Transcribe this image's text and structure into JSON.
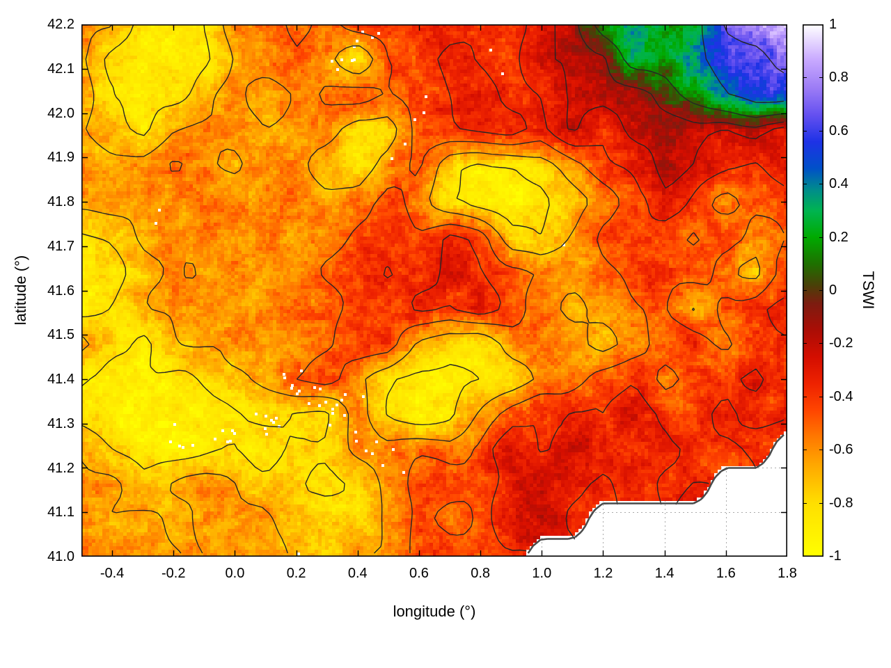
{
  "chart_data": {
    "type": "heatmap",
    "title": "",
    "xlabel": "longitude (°)",
    "ylabel": "latitude (°)",
    "colorbar_label": "TSWI",
    "x_range": [
      -0.5,
      1.8
    ],
    "y_range": [
      41.0,
      42.2
    ],
    "color_range": [
      -1,
      1
    ],
    "x_ticks": [
      -0.4,
      -0.2,
      0.0,
      0.2,
      0.4,
      0.6,
      0.8,
      1.0,
      1.2,
      1.4,
      1.6,
      1.8
    ],
    "x_tick_labels": [
      "-0.4",
      "-0.2",
      "0.0",
      "0.2",
      "0.4",
      "0.6",
      "0.8",
      "1.0",
      "1.2",
      "1.4",
      "1.6",
      "1.8"
    ],
    "y_ticks": [
      41.0,
      41.1,
      41.2,
      41.3,
      41.4,
      41.5,
      41.6,
      41.7,
      41.8,
      41.9,
      42.0,
      42.1,
      42.2
    ],
    "y_tick_labels": [
      "41.0",
      "41.1",
      "41.2",
      "41.3",
      "41.4",
      "41.5",
      "41.6",
      "41.7",
      "41.8",
      "41.9",
      "42.0",
      "42.1",
      "42.2"
    ],
    "colorbar_ticks": [
      1,
      0.8,
      0.6,
      0.4,
      0.2,
      0,
      -0.2,
      -0.4,
      -0.6,
      -0.8,
      -1
    ],
    "colorbar_tick_labels": [
      "1",
      "0.8",
      "0.6",
      "0.4",
      "0.2",
      "0",
      "-0.2",
      "-0.4",
      "-0.6",
      "-0.8",
      "-1"
    ],
    "grid_lon_start": -0.5,
    "grid_lon_step": 0.1,
    "grid_lat_start": 42.2,
    "grid_lat_step": -0.08,
    "values": [
      [
        -0.6,
        -0.6,
        -0.9,
        -0.9,
        -0.85,
        -0.6,
        -0.6,
        -0.45,
        -0.6,
        -0.45,
        -0.45,
        -0.4,
        -0.4,
        -0.35,
        -0.4,
        -0.25,
        -0.2,
        0.2,
        0.3,
        0.25,
        0.3,
        0.7,
        0.8,
        0.9
      ],
      [
        -0.65,
        -0.85,
        -0.9,
        -0.9,
        -0.85,
        -0.65,
        -0.6,
        -0.5,
        -0.6,
        -0.8,
        -0.45,
        -0.4,
        -0.3,
        -0.35,
        -0.4,
        -0.25,
        -0.2,
        -0.15,
        0.25,
        0.2,
        0.35,
        0.55,
        0.6,
        0.8
      ],
      [
        -0.6,
        -0.85,
        -0.9,
        -0.85,
        -0.7,
        -0.6,
        -0.7,
        -0.6,
        -0.5,
        -0.45,
        -0.55,
        -0.45,
        -0.35,
        -0.25,
        -0.4,
        -0.35,
        -0.2,
        -0.2,
        -0.15,
        -0.05,
        0.2,
        0.4,
        0.55,
        0.5
      ],
      [
        -0.65,
        -0.7,
        -0.85,
        -0.65,
        -0.6,
        -0.6,
        -0.65,
        -0.6,
        -0.55,
        -0.8,
        -0.75,
        -0.45,
        -0.4,
        -0.35,
        -0.3,
        -0.4,
        -0.25,
        -0.35,
        -0.2,
        -0.15,
        -0.2,
        -0.3,
        -0.2,
        -0.3
      ],
      [
        -0.6,
        -0.65,
        -0.6,
        -0.5,
        -0.6,
        -0.65,
        -0.6,
        -0.55,
        -0.75,
        -0.8,
        -0.6,
        -0.45,
        -0.75,
        -0.85,
        -0.85,
        -0.8,
        -0.6,
        -0.45,
        -0.3,
        -0.2,
        -0.25,
        -0.35,
        -0.4,
        -0.3
      ],
      [
        -0.6,
        -0.6,
        -0.65,
        -0.6,
        -0.5,
        -0.6,
        -0.6,
        -0.55,
        -0.6,
        -0.55,
        -0.45,
        -0.55,
        -0.8,
        -0.9,
        -0.9,
        -0.85,
        -0.75,
        -0.55,
        -0.45,
        -0.3,
        -0.4,
        -0.55,
        -0.45,
        -0.4
      ],
      [
        -0.85,
        -0.8,
        -0.65,
        -0.6,
        -0.6,
        -0.65,
        -0.6,
        -0.6,
        -0.55,
        -0.45,
        -0.42,
        -0.45,
        -0.3,
        -0.4,
        -0.75,
        -0.8,
        -0.6,
        -0.45,
        -0.4,
        -0.45,
        -0.55,
        -0.45,
        -0.6,
        -0.45
      ],
      [
        -0.9,
        -0.85,
        -0.7,
        -0.6,
        -0.65,
        -0.6,
        -0.65,
        -0.6,
        -0.5,
        -0.45,
        -0.35,
        -0.4,
        -0.3,
        -0.35,
        -0.45,
        -0.55,
        -0.6,
        -0.55,
        -0.45,
        -0.4,
        -0.45,
        -0.6,
        -0.7,
        -0.45
      ],
      [
        -0.85,
        -0.8,
        -0.7,
        -0.65,
        -0.6,
        -0.65,
        -0.6,
        -0.55,
        -0.5,
        -0.45,
        -0.4,
        -0.35,
        -0.4,
        -0.3,
        -0.45,
        -0.55,
        -0.7,
        -0.6,
        -0.55,
        -0.45,
        -0.7,
        -0.45,
        -0.4,
        -0.35
      ],
      [
        -0.65,
        -0.8,
        -0.85,
        -0.7,
        -0.65,
        -0.6,
        -0.65,
        -0.6,
        -0.5,
        -0.42,
        -0.4,
        -0.7,
        -0.8,
        -0.85,
        -0.6,
        -0.55,
        -0.6,
        -0.7,
        -0.6,
        -0.45,
        -0.4,
        -0.55,
        -0.45,
        -0.4
      ],
      [
        -0.8,
        -0.85,
        -0.9,
        -0.85,
        -0.8,
        -0.75,
        -0.65,
        -0.5,
        -0.45,
        -0.6,
        -0.8,
        -0.9,
        -0.9,
        -0.85,
        -0.8,
        -0.6,
        -0.55,
        -0.45,
        -0.4,
        -0.55,
        -0.45,
        -0.4,
        -0.3,
        -0.45
      ],
      [
        -0.85,
        -0.9,
        -0.95,
        -0.9,
        -0.9,
        -0.85,
        -0.8,
        -0.85,
        -0.8,
        -0.6,
        -0.8,
        -0.9,
        -0.85,
        -0.65,
        -0.45,
        -0.4,
        -0.3,
        -0.4,
        -0.3,
        -0.4,
        -0.45,
        -0.3,
        -0.4,
        -0.35
      ],
      [
        -0.65,
        -0.8,
        -0.9,
        -0.9,
        -0.85,
        -0.8,
        -0.85,
        -0.8,
        -0.75,
        -0.65,
        -0.6,
        -0.5,
        -0.55,
        -0.45,
        -0.3,
        -0.4,
        -0.25,
        -0.3,
        -0.4,
        -0.3,
        -0.4,
        -0.45,
        -0.35,
        null
      ],
      [
        -0.6,
        -0.65,
        -0.75,
        -0.65,
        -0.6,
        -0.65,
        -0.75,
        -0.8,
        -0.85,
        -0.8,
        -0.6,
        -0.45,
        -0.4,
        -0.45,
        -0.3,
        -0.25,
        -0.3,
        -0.4,
        -0.3,
        -0.4,
        -0.35,
        null,
        null,
        null
      ],
      [
        -0.6,
        -0.65,
        -0.6,
        -0.65,
        -0.6,
        -0.65,
        -0.6,
        -0.75,
        -0.8,
        -0.75,
        -0.6,
        -0.45,
        -0.55,
        -0.45,
        -0.3,
        -0.25,
        -0.35,
        null,
        null,
        null,
        null,
        null,
        null,
        null
      ],
      [
        -0.6,
        -0.65,
        -0.6,
        -0.6,
        -0.65,
        -0.6,
        -0.65,
        -0.7,
        -0.75,
        -0.65,
        -0.6,
        -0.45,
        -0.4,
        -0.45,
        -0.4,
        null,
        null,
        null,
        null,
        null,
        null,
        null,
        null,
        null
      ]
    ],
    "contour_levels": [
      -0.82,
      -0.66,
      -0.5,
      -0.36,
      -0.22,
      -0.1,
      0.1,
      0.4,
      0.68
    ],
    "colormap": [
      [
        -1.0,
        "#ffff00"
      ],
      [
        -0.8,
        "#ffdf00"
      ],
      [
        -0.65,
        "#ffa500"
      ],
      [
        -0.55,
        "#ff7800"
      ],
      [
        -0.45,
        "#ff4500"
      ],
      [
        -0.35,
        "#ee2200"
      ],
      [
        -0.25,
        "#d40e00"
      ],
      [
        -0.15,
        "#ab0d05"
      ],
      [
        -0.05,
        "#7d1c10"
      ],
      [
        0.02,
        "#4a4008"
      ],
      [
        0.1,
        "#1e7000"
      ],
      [
        0.2,
        "#00aa00"
      ],
      [
        0.3,
        "#00b450"
      ],
      [
        0.38,
        "#008c8c"
      ],
      [
        0.46,
        "#0050c8"
      ],
      [
        0.56,
        "#1e32e6"
      ],
      [
        0.66,
        "#6450f0"
      ],
      [
        0.76,
        "#9b7bf5"
      ],
      [
        0.87,
        "#c9aaff"
      ],
      [
        1.0,
        "#ffffff"
      ]
    ],
    "nodata_specks": [
      {
        "lon": 0.18,
        "lat": 41.4,
        "n": 7
      },
      {
        "lon": 0.25,
        "lat": 41.37,
        "n": 5
      },
      {
        "lon": 0.3,
        "lat": 41.33,
        "n": 4
      },
      {
        "lon": 0.1,
        "lat": 41.3,
        "n": 8
      },
      {
        "lon": -0.05,
        "lat": 41.28,
        "n": 6
      },
      {
        "lon": -0.18,
        "lat": 41.28,
        "n": 5
      },
      {
        "lon": 0.38,
        "lat": 41.35,
        "n": 4
      },
      {
        "lon": 0.42,
        "lat": 41.27,
        "n": 3
      },
      {
        "lon": 0.47,
        "lat": 41.24,
        "n": 3
      },
      {
        "lon": 0.35,
        "lat": 42.13,
        "n": 6
      },
      {
        "lon": 0.42,
        "lat": 42.16,
        "n": 4
      },
      {
        "lon": 0.62,
        "lat": 42.01,
        "n": 3
      },
      {
        "lon": 0.55,
        "lat": 41.92,
        "n": 2
      },
      {
        "lon": 0.85,
        "lat": 42.12,
        "n": 2
      },
      {
        "lon": -0.22,
        "lat": 41.77,
        "n": 2
      },
      {
        "lon": 1.05,
        "lat": 41.7,
        "n": 1
      },
      {
        "lon": 0.2,
        "lat": 41.02,
        "n": 1
      },
      {
        "lon": 0.52,
        "lat": 41.22,
        "n": 2
      }
    ],
    "grid_color": "#aaaaaa",
    "contour_color": "#262626",
    "coast_color": "#4a4a4a",
    "legend_position": "right-colorbar",
    "grid": "dotted"
  }
}
